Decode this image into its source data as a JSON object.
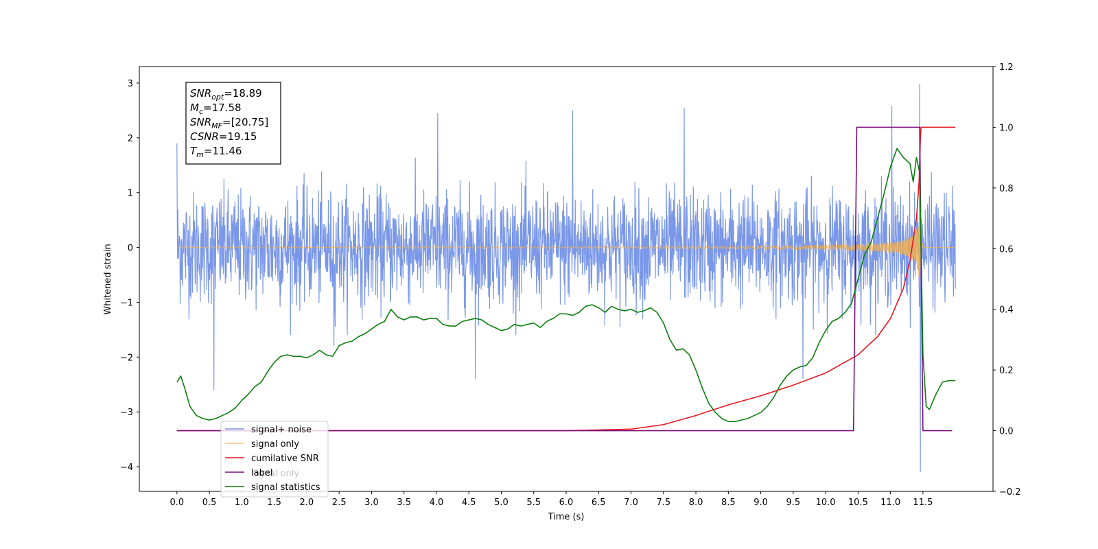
{
  "chart_data": {
    "type": "line",
    "xlabel": "Time (s)",
    "ylabel": "Whitened strain",
    "xlim": [
      -0.58,
      12.58
    ],
    "ylim": [
      -4.45,
      3.3
    ],
    "y2lim": [
      -0.2,
      1.2
    ],
    "xticks": [
      "0.0",
      "0.5",
      "1.0",
      "1.5",
      "2.0",
      "2.5",
      "3.0",
      "3.5",
      "4.0",
      "4.5",
      "5.0",
      "5.5",
      "6.0",
      "6.5",
      "7.0",
      "7.5",
      "8.0",
      "8.5",
      "9.0",
      "9.5",
      "10.0",
      "10.5",
      "11.0",
      "11.5"
    ],
    "yticks": [
      "3",
      "2",
      "1",
      "0",
      "−1",
      "−2",
      "−3",
      "−4"
    ],
    "y2ticks": [
      "1.2",
      "1.0",
      "0.8",
      "0.6",
      "0.4",
      "0.2",
      "0.0",
      "−0.2"
    ],
    "legend_position": "lower-left",
    "legend": [
      "signal+ noise",
      "signal only",
      "cumilative SNR",
      "label",
      "signal statistics"
    ],
    "legend_hidden_entry": "signal only",
    "series": [
      {
        "name": "signal+ noise",
        "axis": "left",
        "color": "#6b8ce6",
        "kind": "noise",
        "x_range": [
          0.0,
          12.0
        ],
        "typical_range": [
          -1.4,
          1.5
        ],
        "notable_points": [
          {
            "x": 0.0,
            "y": 1.9
          },
          {
            "x": 0.57,
            "y": -2.6
          },
          {
            "x": 2.42,
            "y": -1.8
          },
          {
            "x": 4.02,
            "y": 2.45
          },
          {
            "x": 4.6,
            "y": -2.4
          },
          {
            "x": 6.1,
            "y": 2.5
          },
          {
            "x": 7.82,
            "y": 2.55
          },
          {
            "x": 9.65,
            "y": -2.4
          },
          {
            "x": 11.02,
            "y": 2.58
          },
          {
            "x": 11.45,
            "y": 2.98
          },
          {
            "x": 11.46,
            "y": -4.1
          }
        ]
      },
      {
        "name": "signal only",
        "axis": "left",
        "color": "#f5b048",
        "kind": "chirp",
        "x_range": [
          0.0,
          12.0
        ],
        "merger_time": 11.46,
        "peak_amplitude": 1.0
      },
      {
        "name": "cumilative SNR",
        "axis": "right",
        "color": "#e8141e",
        "x": [
          0,
          6.0,
          7.0,
          7.5,
          8.0,
          8.5,
          9.0,
          9.5,
          10.0,
          10.5,
          10.8,
          11.0,
          11.2,
          11.3,
          11.4,
          11.44,
          11.46,
          11.47,
          12.0
        ],
        "y": [
          0,
          0.0,
          0.005,
          0.02,
          0.05,
          0.085,
          0.115,
          0.15,
          0.19,
          0.25,
          0.31,
          0.37,
          0.47,
          0.56,
          0.7,
          0.82,
          0.96,
          1.0,
          1.0
        ]
      },
      {
        "name": "label",
        "axis": "right",
        "color": "#7b0f7b",
        "x": [
          0,
          10.43,
          10.48,
          11.45,
          11.5,
          11.95
        ],
        "y": [
          0,
          0,
          1,
          1,
          0,
          0
        ]
      },
      {
        "name": "signal statistics",
        "axis": "right",
        "color": "#0c7d0c",
        "x": [
          0.0,
          0.06,
          0.12,
          0.2,
          0.3,
          0.4,
          0.5,
          0.6,
          0.7,
          0.8,
          0.9,
          1.0,
          1.1,
          1.2,
          1.3,
          1.4,
          1.5,
          1.6,
          1.7,
          1.8,
          1.9,
          2.0,
          2.1,
          2.2,
          2.3,
          2.4,
          2.5,
          2.6,
          2.7,
          2.8,
          2.9,
          3.0,
          3.1,
          3.2,
          3.3,
          3.4,
          3.5,
          3.6,
          3.7,
          3.8,
          3.9,
          4.0,
          4.1,
          4.2,
          4.3,
          4.4,
          4.5,
          4.6,
          4.7,
          4.8,
          4.9,
          5.0,
          5.1,
          5.2,
          5.3,
          5.4,
          5.5,
          5.6,
          5.7,
          5.8,
          5.9,
          6.0,
          6.1,
          6.2,
          6.3,
          6.4,
          6.5,
          6.6,
          6.7,
          6.8,
          6.9,
          7.0,
          7.1,
          7.2,
          7.3,
          7.4,
          7.5,
          7.6,
          7.7,
          7.8,
          7.9,
          8.0,
          8.1,
          8.2,
          8.3,
          8.4,
          8.5,
          8.6,
          8.7,
          8.8,
          8.9,
          9.0,
          9.1,
          9.2,
          9.3,
          9.4,
          9.5,
          9.6,
          9.7,
          9.8,
          9.9,
          10.0,
          10.1,
          10.2,
          10.3,
          10.4,
          10.5,
          10.6,
          10.7,
          10.8,
          10.9,
          11.0,
          11.1,
          11.2,
          11.3,
          11.35,
          11.4,
          11.45,
          11.5,
          11.55,
          11.6,
          11.7,
          11.8,
          11.9,
          12.0
        ],
        "y": [
          0.16,
          0.18,
          0.14,
          0.08,
          0.05,
          0.04,
          0.035,
          0.04,
          0.05,
          0.06,
          0.075,
          0.1,
          0.12,
          0.145,
          0.16,
          0.195,
          0.225,
          0.245,
          0.25,
          0.245,
          0.245,
          0.24,
          0.25,
          0.265,
          0.25,
          0.245,
          0.28,
          0.29,
          0.295,
          0.31,
          0.32,
          0.335,
          0.35,
          0.36,
          0.4,
          0.375,
          0.365,
          0.375,
          0.375,
          0.365,
          0.37,
          0.37,
          0.35,
          0.345,
          0.345,
          0.36,
          0.365,
          0.37,
          0.365,
          0.35,
          0.34,
          0.33,
          0.335,
          0.35,
          0.345,
          0.35,
          0.355,
          0.34,
          0.36,
          0.37,
          0.385,
          0.385,
          0.38,
          0.39,
          0.41,
          0.415,
          0.405,
          0.39,
          0.41,
          0.4,
          0.395,
          0.4,
          0.39,
          0.395,
          0.405,
          0.39,
          0.355,
          0.3,
          0.265,
          0.27,
          0.25,
          0.2,
          0.14,
          0.09,
          0.06,
          0.04,
          0.03,
          0.03,
          0.035,
          0.04,
          0.05,
          0.06,
          0.08,
          0.11,
          0.15,
          0.18,
          0.2,
          0.21,
          0.215,
          0.24,
          0.29,
          0.33,
          0.36,
          0.37,
          0.39,
          0.42,
          0.5,
          0.58,
          0.62,
          0.7,
          0.78,
          0.87,
          0.93,
          0.9,
          0.88,
          0.82,
          0.9,
          0.85,
          0.25,
          0.08,
          0.07,
          0.12,
          0.16,
          0.165,
          0.165
        ]
      }
    ],
    "annotation": [
      {
        "base": "SNR",
        "sub": "opt",
        "value": "=18.89"
      },
      {
        "base": "M",
        "sub": "c",
        "value": "=17.58"
      },
      {
        "base": "SNR",
        "sub": "MF",
        "value": "=[20.75]"
      },
      {
        "base": "CSNR",
        "sub": "",
        "value": "=19.15"
      },
      {
        "base": "T",
        "sub": "m",
        "value": "=11.46"
      }
    ]
  }
}
